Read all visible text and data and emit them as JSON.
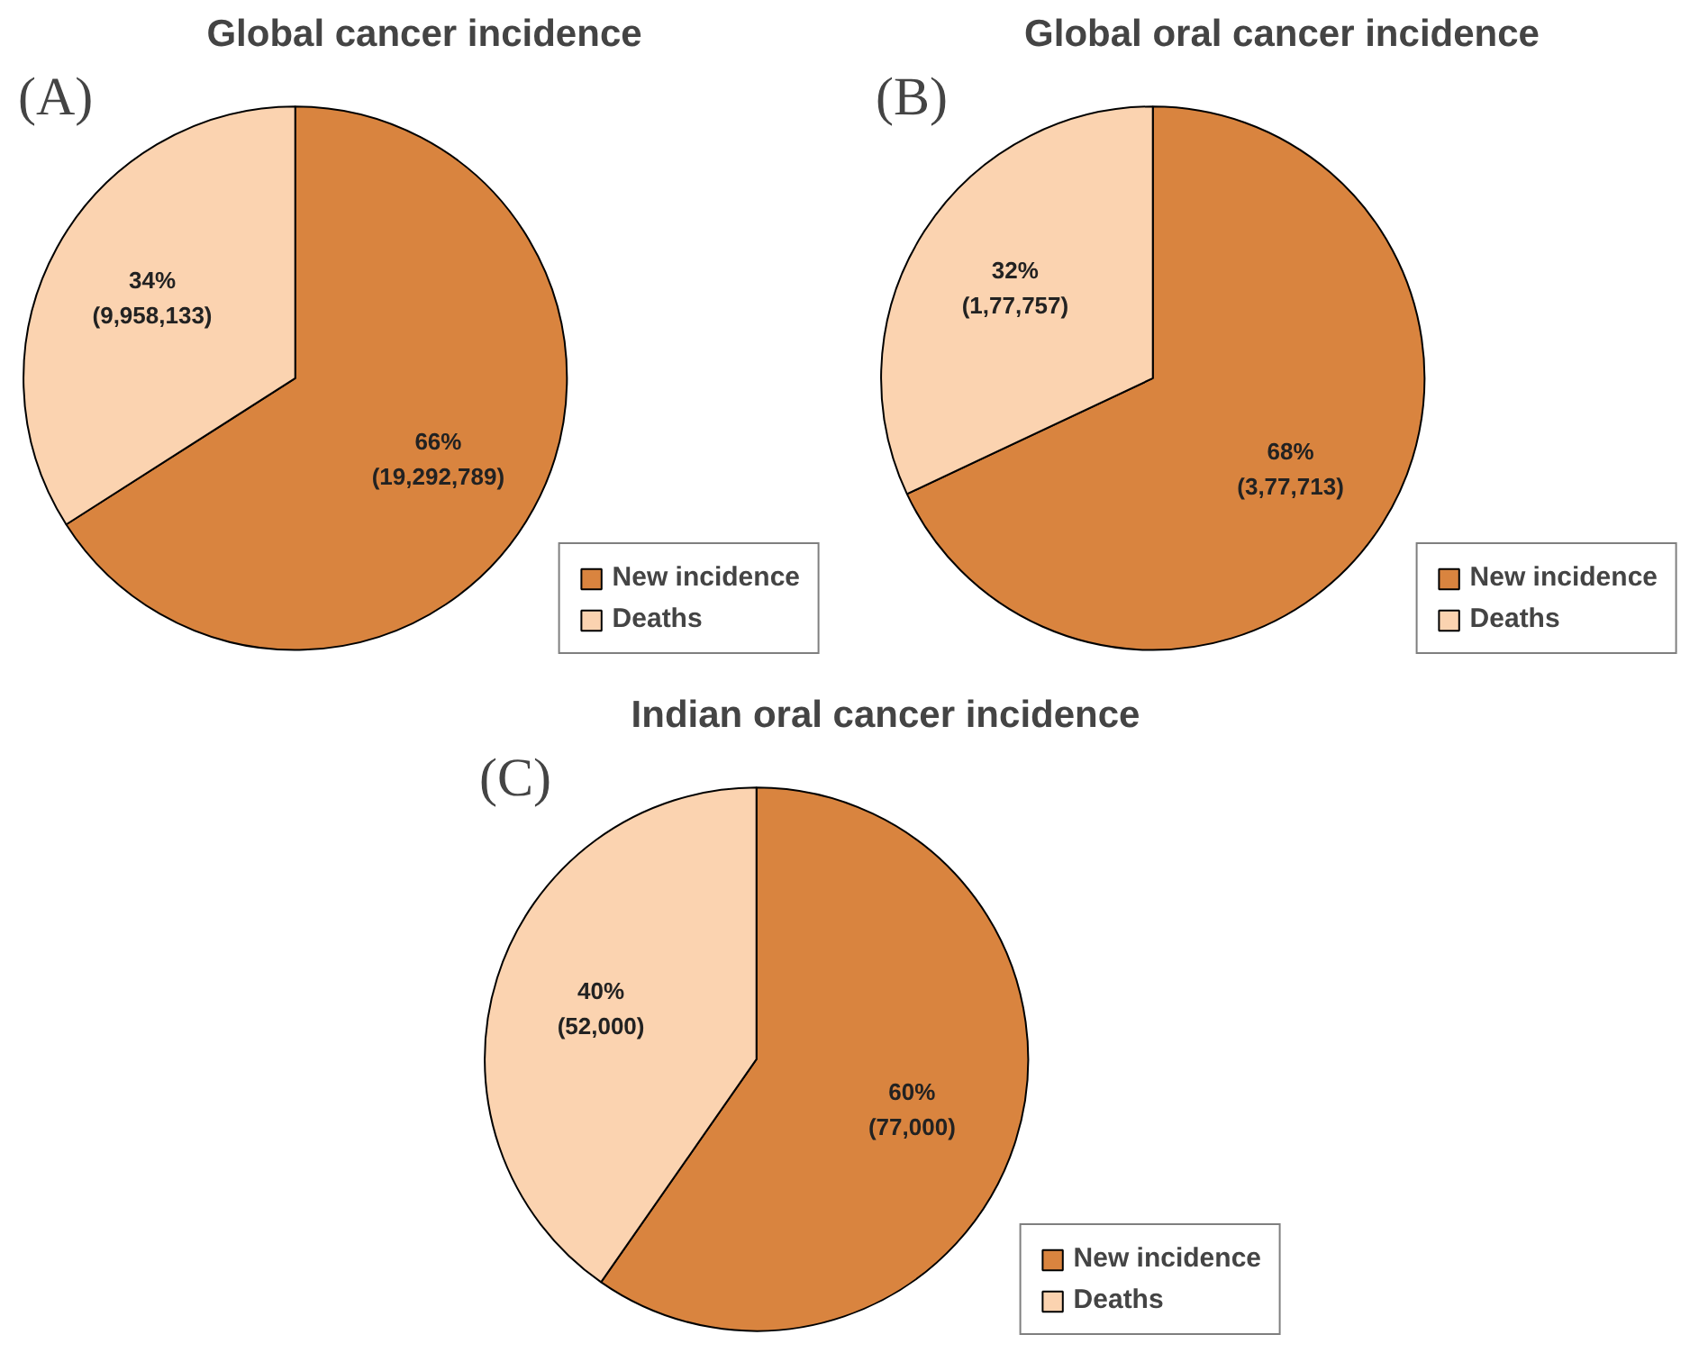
{
  "chart_data": [
    {
      "type": "pie",
      "title": "Global cancer incidence",
      "annotations": [
        "(A)"
      ],
      "categories": [
        "New incidence",
        "Deaths"
      ],
      "values": [
        19292789,
        9958133
      ],
      "colors": [
        "#d9843f",
        "#fbd3b0"
      ],
      "value_labels": [
        "66%\n(19,292,789)",
        "34%\n(9,958,133)"
      ],
      "legend": "bottom right"
    },
    {
      "type": "pie",
      "title": "Global oral cancer incidence",
      "annotations": [
        "(B)"
      ],
      "categories": [
        "New incidence",
        "Deaths"
      ],
      "values": [
        377713,
        177757
      ],
      "colors": [
        "#d9843f",
        "#fbd3b0"
      ],
      "value_labels": [
        "68%\n(3,77,713)",
        "32%\n(1,77,757)"
      ],
      "legend": "bottom right"
    },
    {
      "type": "pie",
      "title": "Indian oral cancer incidence",
      "annotations": [
        "(C)"
      ],
      "categories": [
        "New incidence",
        "Deaths"
      ],
      "values": [
        77000,
        52000
      ],
      "colors": [
        "#d9843f",
        "#fbd3b0"
      ],
      "value_labels": [
        "60%\n(77,000)",
        "40%\n(52,000)"
      ],
      "legend": "bottom right"
    }
  ]
}
